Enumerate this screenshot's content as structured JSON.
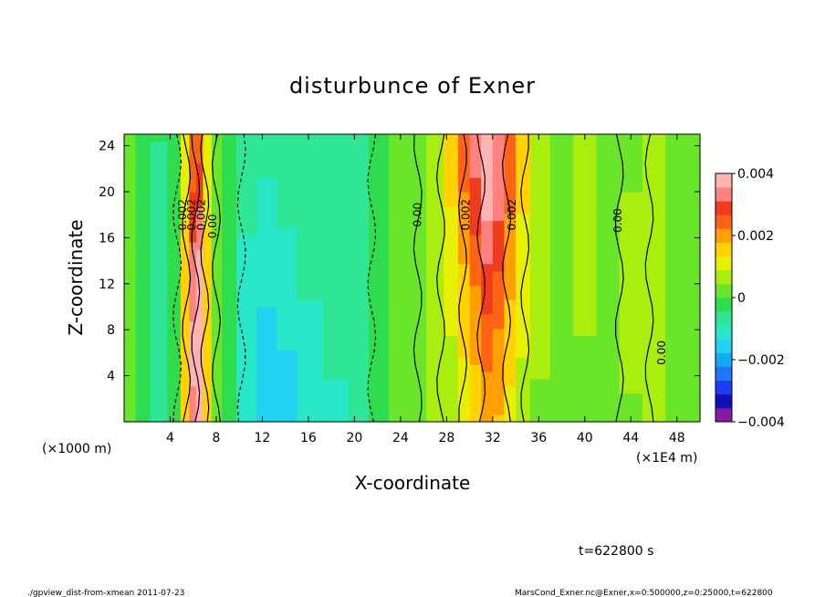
{
  "chart_data": {
    "type": "heatmap",
    "title": "disturbunce of Exner",
    "xlabel": "X-coordinate",
    "ylabel": "Z-coordinate",
    "x_units_left": "(×1000 m)",
    "x_units_right": "(×1E4 m)",
    "xlim": [
      0,
      50
    ],
    "ylim": [
      0,
      25
    ],
    "x_ticks": [
      4,
      8,
      12,
      16,
      20,
      24,
      28,
      32,
      36,
      40,
      44,
      48
    ],
    "y_ticks": [
      4,
      8,
      12,
      16,
      20,
      24
    ],
    "colorbar": {
      "range": [
        -0.004,
        0.004
      ],
      "tick_values": [
        0.004,
        0.002,
        0,
        -0.002,
        -0.004
      ],
      "tick_labels": [
        "0.004",
        "0.002",
        "0",
        "−0.002",
        "−0.004"
      ],
      "colors": [
        "#8c18a8",
        "#1010b4",
        "#1c3cf0",
        "#1c78f8",
        "#12aaf5",
        "#22d2f0",
        "#28e6c8",
        "#2ee696",
        "#2fdc50",
        "#6ae62a",
        "#aaee10",
        "#e6f000",
        "#ffd200",
        "#ffa000",
        "#ff6414",
        "#f03c1e",
        "#ff8282",
        "#ffb4b4"
      ]
    },
    "field_columns": [
      {
        "x": 0.5,
        "v": 0.0004
      },
      {
        "x": 1.5,
        "v": -0.0004
      },
      {
        "x": 3.0,
        "v": -0.0006
      },
      {
        "x": 4.5,
        "v": -0.0001
      },
      {
        "x": 5.3,
        "v": 0.0016
      },
      {
        "x": 6.0,
        "v": 0.0036
      },
      {
        "x": 6.5,
        "v": 0.0041
      },
      {
        "x": 7.2,
        "v": 0.0017
      },
      {
        "x": 8.0,
        "v": 0.0004
      },
      {
        "x": 9.0,
        "v": -0.0003
      },
      {
        "x": 10.5,
        "v": -0.0013
      },
      {
        "x": 12.5,
        "v": -0.0017
      },
      {
        "x": 14.0,
        "v": -0.0016
      },
      {
        "x": 16.0,
        "v": -0.0014
      },
      {
        "x": 18.5,
        "v": -0.0012
      },
      {
        "x": 20.5,
        "v": -0.001
      },
      {
        "x": 22.0,
        "v": -0.0005
      },
      {
        "x": 24.0,
        "v": 0.0001
      },
      {
        "x": 25.5,
        "v": 0.0004
      },
      {
        "x": 27.0,
        "v": 0.001
      },
      {
        "x": 28.5,
        "v": 0.0017
      },
      {
        "x": 29.5,
        "v": 0.0026
      },
      {
        "x": 30.5,
        "v": 0.0034
      },
      {
        "x": 31.5,
        "v": 0.0042
      },
      {
        "x": 32.5,
        "v": 0.0035
      },
      {
        "x": 33.5,
        "v": 0.0024
      },
      {
        "x": 34.5,
        "v": 0.0014
      },
      {
        "x": 36.0,
        "v": 0.0007
      },
      {
        "x": 38.0,
        "v": 0.0004
      },
      {
        "x": 40.0,
        "v": 0.0005
      },
      {
        "x": 42.0,
        "v": 0.0002
      },
      {
        "x": 44.0,
        "v": 0.0005
      },
      {
        "x": 46.0,
        "v": 0.0008
      },
      {
        "x": 48.0,
        "v": 0.0004
      },
      {
        "x": 49.5,
        "v": 0.0
      }
    ],
    "contour_labels": [
      {
        "text": "0.002",
        "x": 5.4,
        "z": 18.0
      },
      {
        "text": "0.002",
        "x": 6.2,
        "z": 18.0
      },
      {
        "text": "0.002",
        "x": 7.0,
        "z": 18.0
      },
      {
        "text": "0.00",
        "x": 8.0,
        "z": 17.0
      },
      {
        "text": "0.00",
        "x": 25.8,
        "z": 18.0
      },
      {
        "text": "0.002",
        "x": 30.0,
        "z": 18.0
      },
      {
        "text": "0.002",
        "x": 34.0,
        "z": 18.0
      },
      {
        "text": "0.00",
        "x": 43.2,
        "z": 17.5
      },
      {
        "text": "0.00",
        "x": 47.0,
        "z": 6.0
      }
    ]
  },
  "time_label": "t=622800 s",
  "footer_left": "./gpview_dist-from-xmean  2011-07-23",
  "footer_right": "MarsCond_Exner.nc@Exner,x=0:500000,z=0:25000,t=622800"
}
